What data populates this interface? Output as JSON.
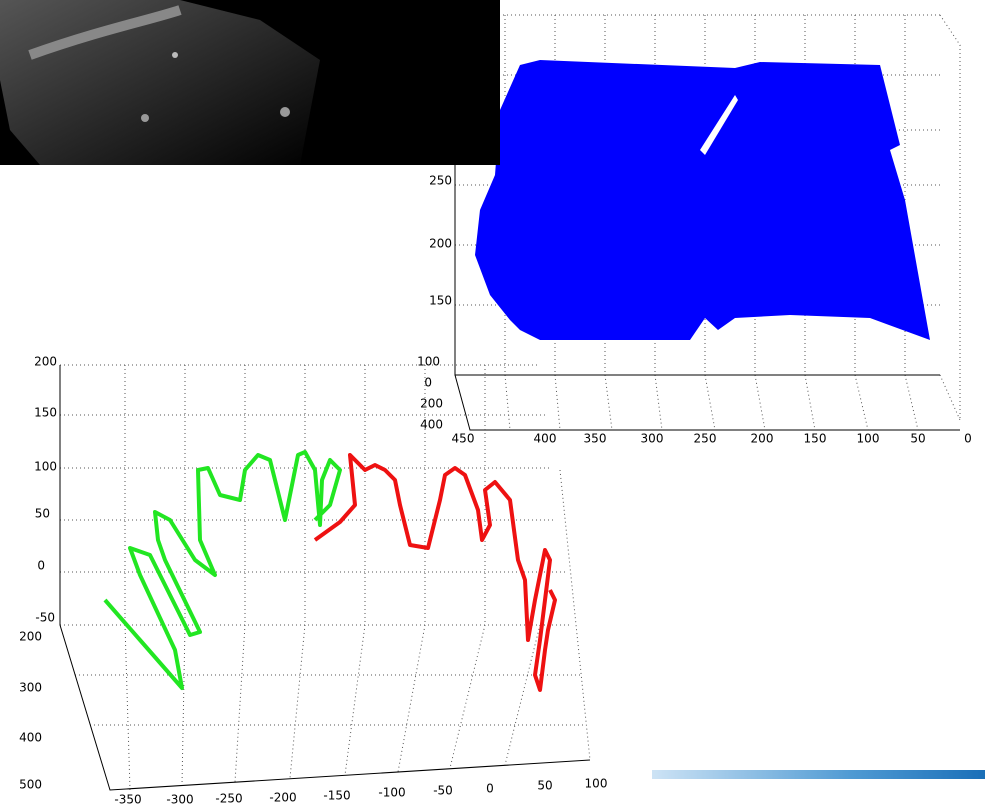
{
  "top_plot": {
    "z_ticks": [
      250,
      200,
      150,
      100
    ],
    "y_ticks": [
      0,
      200,
      400
    ],
    "x_ticks": [
      450,
      400,
      350,
      300,
      250,
      200,
      150,
      100,
      50,
      0
    ]
  },
  "bottom_plot": {
    "z_ticks": [
      200,
      150,
      100,
      50,
      0,
      -50
    ],
    "y_ticks": [
      200,
      300,
      400,
      500
    ],
    "x_ticks": [
      -350,
      -300,
      -250,
      -200,
      -150,
      -100,
      -50,
      0,
      50,
      100
    ]
  }
}
